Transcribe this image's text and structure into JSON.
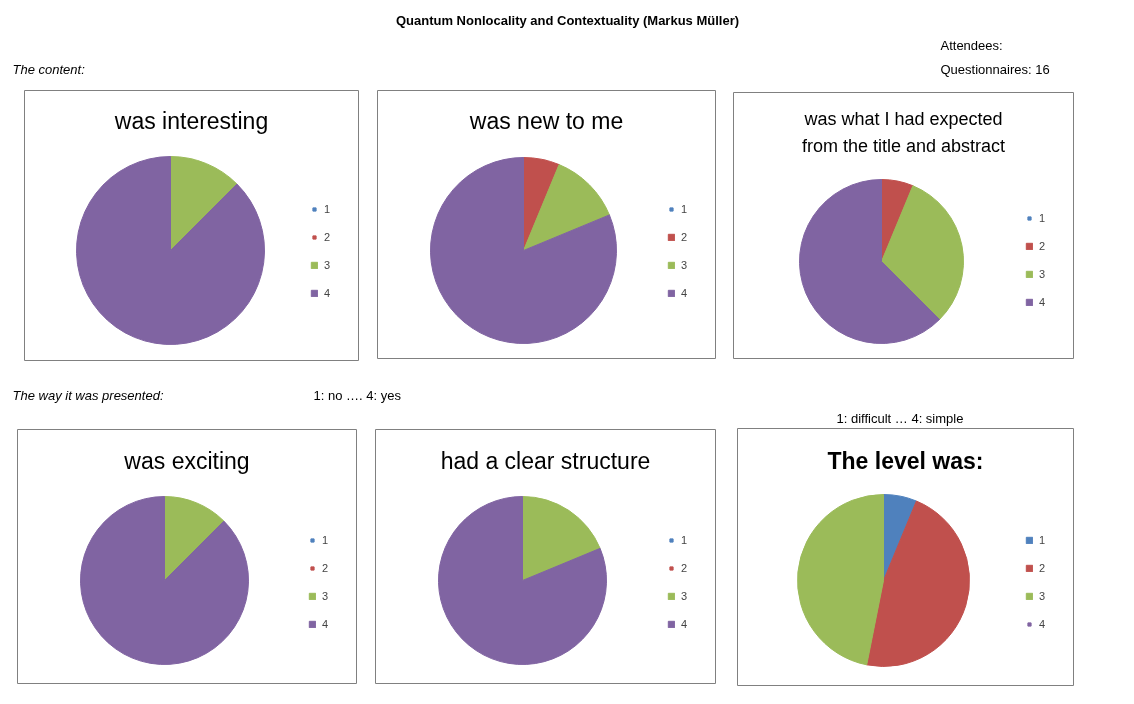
{
  "chart_data": [
    {
      "type": "pie",
      "title": "was interesting",
      "categories": [
        "1",
        "2",
        "3",
        "4"
      ],
      "values": [
        0,
        0,
        12.5,
        87.5
      ],
      "colors": [
        "#4f81bd",
        "#c0504d",
        "#9bbb59",
        "#8064a2"
      ],
      "legend": "right",
      "annotations": [
        "Quantum Nonlocality and Contextuality (Markus Müller)",
        "Attendees:",
        "Questionnaires: 16",
        "The content:"
      ]
    },
    {
      "type": "pie",
      "title": "was new to me",
      "categories": [
        "1",
        "2",
        "3",
        "4"
      ],
      "values": [
        0,
        6.25,
        12.5,
        81.25
      ],
      "colors": [
        "#4f81bd",
        "#c0504d",
        "#9bbb59",
        "#8064a2"
      ],
      "legend": "right"
    },
    {
      "type": "pie",
      "title": "was what I had expected from the title and abstract",
      "categories": [
        "1",
        "2",
        "3",
        "4"
      ],
      "values": [
        0,
        6.25,
        31.25,
        62.5
      ],
      "colors": [
        "#4f81bd",
        "#c0504d",
        "#9bbb59",
        "#8064a2"
      ],
      "legend": "right"
    },
    {
      "type": "pie",
      "title": "was exciting",
      "categories": [
        "1",
        "2",
        "3",
        "4"
      ],
      "values": [
        0,
        0,
        12.5,
        87.5
      ],
      "colors": [
        "#4f81bd",
        "#c0504d",
        "#9bbb59",
        "#8064a2"
      ],
      "legend": "right",
      "annotations": [
        "The way it was presented:",
        "1: no …. 4: yes"
      ]
    },
    {
      "type": "pie",
      "title": "had a clear structure",
      "categories": [
        "1",
        "2",
        "3",
        "4"
      ],
      "values": [
        0,
        0,
        18.75,
        81.25
      ],
      "colors": [
        "#4f81bd",
        "#c0504d",
        "#9bbb59",
        "#8064a2"
      ],
      "legend": "right"
    },
    {
      "type": "pie",
      "title": "The level was:",
      "categories": [
        "1",
        "2",
        "3",
        "4"
      ],
      "values": [
        6.25,
        46.875,
        46.875,
        0
      ],
      "colors": [
        "#4f81bd",
        "#c0504d",
        "#9bbb59",
        "#8064a2"
      ],
      "legend": "right",
      "annotations": [
        "1: difficult … 4: simple"
      ]
    }
  ]
}
